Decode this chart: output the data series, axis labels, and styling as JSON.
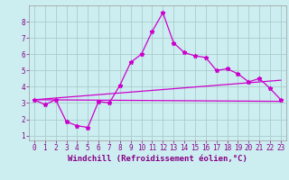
{
  "xlabel": "Windchill (Refroidissement éolien,°C)",
  "ylabel": "",
  "background_color": "#cceef0",
  "grid_color": "#aacccc",
  "line_color": "#cc00cc",
  "xlim": [
    -0.5,
    23.5
  ],
  "ylim": [
    0.7,
    9.0
  ],
  "yticks": [
    1,
    2,
    3,
    4,
    5,
    6,
    7,
    8
  ],
  "xticks": [
    0,
    1,
    2,
    3,
    4,
    5,
    6,
    7,
    8,
    9,
    10,
    11,
    12,
    13,
    14,
    15,
    16,
    17,
    18,
    19,
    20,
    21,
    22,
    23
  ],
  "line1_x": [
    0,
    1,
    2,
    3,
    4,
    5,
    6,
    7,
    8,
    9,
    10,
    11,
    12,
    13,
    14,
    15,
    16,
    17,
    18,
    19,
    20,
    21,
    22,
    23
  ],
  "line1_y": [
    3.2,
    2.9,
    3.2,
    1.85,
    1.6,
    1.5,
    3.1,
    3.0,
    4.1,
    5.5,
    6.0,
    7.4,
    8.55,
    6.7,
    6.1,
    5.9,
    5.8,
    5.0,
    5.1,
    4.8,
    4.3,
    4.5,
    3.9,
    3.2
  ],
  "line2_x": [
    0,
    23
  ],
  "line2_y": [
    3.2,
    4.4
  ],
  "line3_x": [
    0,
    23
  ],
  "line3_y": [
    3.2,
    3.1
  ],
  "font_family": "monospace",
  "tick_fontsize": 5.5,
  "label_fontsize": 6.5,
  "label_color": "#880088",
  "tick_color": "#880088"
}
